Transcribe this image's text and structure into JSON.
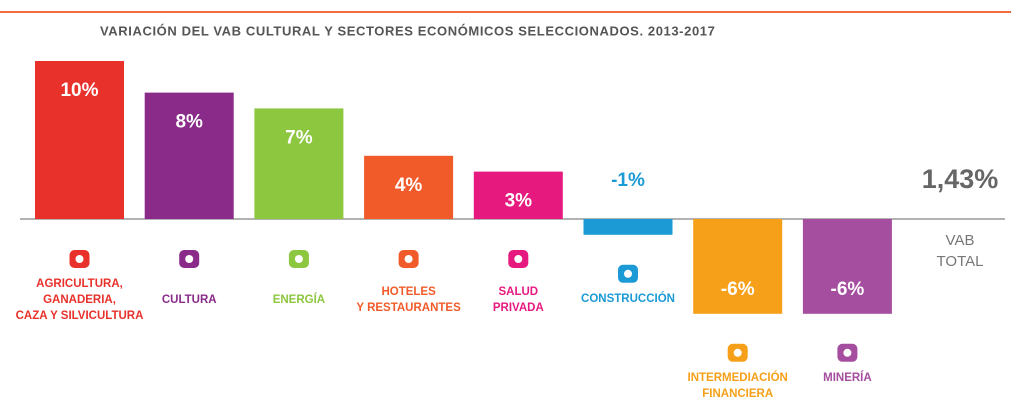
{
  "chart_data": {
    "type": "bar",
    "title": "VARIACIÓN DEL VAB CULTURAL Y SECTORES ECONÓMICOS SELECCIONADOS. 2013-2017",
    "categories": [
      [
        "AGRICULTURA,",
        "GANADERIA,",
        "CAZA Y SILVICULTURA"
      ],
      [
        "CULTURA"
      ],
      [
        "ENERGÍA"
      ],
      [
        "HOTELES",
        "Y RESTAURANTES"
      ],
      [
        "SALUD",
        "PRIVADA"
      ],
      [
        "CONSTRUCCIÓN"
      ],
      [
        "INTERMEDIACIÓN",
        "FINANCIERA"
      ],
      [
        "MINERÍA"
      ]
    ],
    "values": [
      10,
      8,
      7,
      4,
      3,
      -1,
      -6,
      -6
    ],
    "value_labels": [
      "10%",
      "8%",
      "7%",
      "4%",
      "3%",
      "-1%",
      "-6%",
      "-6%"
    ],
    "colors": [
      "#e8312b",
      "#8a2b8a",
      "#8dc63f",
      "#f15a29",
      "#e6197f",
      "#1b9ad6",
      "#f6a01a",
      "#a54d9e"
    ],
    "total": {
      "name": [
        "VAB",
        "TOTAL"
      ],
      "value": 1.43,
      "label": "1,43%"
    }
  }
}
